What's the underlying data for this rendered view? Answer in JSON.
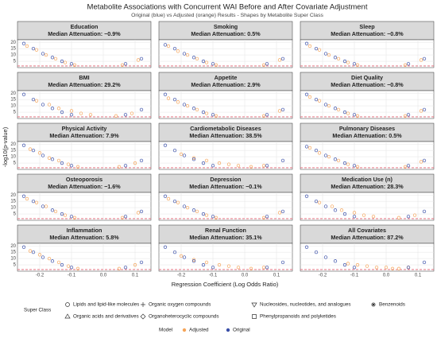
{
  "chart_data": {
    "type": "scatter",
    "title": "Metabolite Associations with Concurrent WAI Before and After Covariate Adjustment",
    "subtitle": "Original (blue) vs Adjusted (orange) Results - Shapes by Metabolite Super Class",
    "x_label": "Regression Coefficient (Log Odds Ratio)",
    "y_label": "-log10(p-value)",
    "xlim": [
      -0.27,
      0.15
    ],
    "ylim": [
      0,
      22
    ],
    "xticks": [
      -0.2,
      -0.1,
      {
        "value": 0,
        "label": "0.0"
      },
      0.1
    ],
    "yticks": [
      5,
      10,
      15,
      20
    ],
    "grid": true,
    "ref_line": 1.3,
    "ref_color": "#e06070",
    "series": [
      {
        "name": "Adjusted",
        "color": "#f5a55a"
      },
      {
        "name": "Original",
        "color": "#3a4fa8"
      }
    ],
    "legend_title": "Model",
    "class_legend": {
      "title": "Super Class",
      "entries": [
        "Lipids and lipid-like molecules",
        "Organic oxygen compounds",
        "Nucleosides, nucleotides, and analogues",
        "Benzenoids",
        "Organic acids and derivatives",
        "Organoheterocyclic compounds",
        "Phenylpropanoids and polyketides"
      ]
    },
    "facets": [
      {
        "title": "Education",
        "subtitle": "Median Attenuation: −0.9%",
        "points": [
          {
            "x": [
              -0.24,
              -0.21,
              -0.18,
              -0.15,
              -0.12,
              -0.09,
              0.06,
              0.11
            ],
            "y": [
              17,
              14,
              10,
              7,
              4,
              2,
              2,
              6
            ]
          },
          {
            "x": [
              -0.25,
              -0.22,
              -0.19,
              -0.16,
              -0.13,
              -0.1,
              0.07,
              0.12
            ],
            "y": [
              19,
              15,
              11,
              8,
              5,
              3,
              3,
              7
            ]
          }
        ]
      },
      {
        "title": "Smoking",
        "subtitle": "Median Attenuation: 0.5%",
        "points": [
          {
            "x": [
              -0.24,
              -0.21,
              -0.18,
              -0.15,
              -0.12,
              -0.09,
              0.06,
              0.11
            ],
            "y": [
              17,
              13,
              10,
              7,
              4,
              2,
              2,
              6
            ]
          },
          {
            "x": [
              -0.25,
              -0.22,
              -0.19,
              -0.16,
              -0.13,
              -0.1,
              0.07,
              0.12
            ],
            "y": [
              18,
              15,
              11,
              8,
              5,
              3,
              3,
              7
            ]
          }
        ]
      },
      {
        "title": "Sleep",
        "subtitle": "Median Attenuation: −0.8%",
        "points": [
          {
            "x": [
              -0.24,
              -0.21,
              -0.18,
              -0.15,
              -0.12,
              -0.09,
              0.06,
              0.11
            ],
            "y": [
              17,
              14,
              10,
              7,
              4,
              2,
              2,
              6
            ]
          },
          {
            "x": [
              -0.25,
              -0.22,
              -0.19,
              -0.16,
              -0.13,
              -0.1,
              0.07,
              0.12
            ],
            "y": [
              19,
              15,
              11,
              8,
              5,
              3,
              3,
              7
            ]
          }
        ]
      },
      {
        "title": "BMI",
        "subtitle": "Median Attenuation: 29.2%",
        "points": [
          {
            "x": [
              -0.21,
              -0.17,
              -0.14,
              -0.1,
              -0.07,
              -0.04,
              0.04,
              0.09
            ],
            "y": [
              14,
              11,
              8,
              6,
              4,
              3,
              2,
              4
            ]
          },
          {
            "x": [
              -0.25,
              -0.22,
              -0.19,
              -0.16,
              -0.13,
              -0.1,
              0.07,
              0.12
            ],
            "y": [
              19,
              15,
              11,
              8,
              5,
              3,
              3,
              7
            ]
          }
        ]
      },
      {
        "title": "Appetite",
        "subtitle": "Median Attenuation: 2.9%",
        "points": [
          {
            "x": [
              -0.24,
              -0.21,
              -0.18,
              -0.15,
              -0.12,
              -0.09,
              0.06,
              0.11
            ],
            "y": [
              16,
              13,
              10,
              7,
              4,
              2,
              2,
              6
            ]
          },
          {
            "x": [
              -0.25,
              -0.22,
              -0.19,
              -0.16,
              -0.13,
              -0.1,
              0.07,
              0.12
            ],
            "y": [
              19,
              15,
              11,
              8,
              5,
              3,
              3,
              7
            ]
          }
        ]
      },
      {
        "title": "Diet Quality",
        "subtitle": "Median Attenuation: −0.8%",
        "points": [
          {
            "x": [
              -0.24,
              -0.21,
              -0.18,
              -0.15,
              -0.12,
              -0.09,
              0.06,
              0.11
            ],
            "y": [
              17,
              14,
              10,
              7,
              4,
              2,
              2,
              6
            ]
          },
          {
            "x": [
              -0.25,
              -0.22,
              -0.19,
              -0.16,
              -0.13,
              -0.1,
              0.07,
              0.12
            ],
            "y": [
              19,
              15,
              11,
              8,
              5,
              3,
              3,
              7
            ]
          }
        ]
      },
      {
        "title": "Physical Activity",
        "subtitle": "Median Attenuation: 7.9%",
        "points": [
          {
            "x": [
              -0.23,
              -0.2,
              -0.17,
              -0.14,
              -0.11,
              -0.08,
              0.05,
              0.1
            ],
            "y": [
              16,
              13,
              9,
              7,
              4,
              2,
              2,
              5
            ]
          },
          {
            "x": [
              -0.25,
              -0.22,
              -0.19,
              -0.16,
              -0.13,
              -0.1,
              0.07,
              0.12
            ],
            "y": [
              19,
              15,
              11,
              8,
              5,
              3,
              3,
              7
            ]
          }
        ]
      },
      {
        "title": "Cardiometabolic Diseases",
        "subtitle": "Median Attenuation: 38.5%",
        "points": [
          {
            "x": [
              -0.2,
              -0.16,
              -0.12,
              -0.08,
              -0.05,
              -0.02,
              0.02,
              0.06
            ],
            "y": [
              12,
              9,
              7,
              5,
              4,
              3,
              2,
              3
            ]
          },
          {
            "x": [
              -0.25,
              -0.22,
              -0.19,
              -0.16,
              -0.13,
              -0.1,
              0.07,
              0.12
            ],
            "y": [
              19,
              15,
              11,
              8,
              5,
              3,
              3,
              7
            ]
          }
        ]
      },
      {
        "title": "Pulmonary Diseases",
        "subtitle": "Median Attenuation: 0.5%",
        "points": [
          {
            "x": [
              -0.24,
              -0.21,
              -0.18,
              -0.15,
              -0.12,
              -0.09,
              0.06,
              0.11
            ],
            "y": [
              17,
              13,
              10,
              7,
              4,
              2,
              2,
              6
            ]
          },
          {
            "x": [
              -0.25,
              -0.22,
              -0.19,
              -0.16,
              -0.13,
              -0.1,
              0.07,
              0.12
            ],
            "y": [
              18,
              15,
              11,
              8,
              5,
              3,
              3,
              7
            ]
          }
        ]
      },
      {
        "title": "Osteoporosis",
        "subtitle": "Median Attenuation: −1.6%",
        "points": [
          {
            "x": [
              -0.24,
              -0.21,
              -0.18,
              -0.15,
              -0.12,
              -0.09,
              0.06,
              0.11
            ],
            "y": [
              17,
              14,
              11,
              7,
              4,
              2,
              2,
              6
            ]
          },
          {
            "x": [
              -0.25,
              -0.22,
              -0.19,
              -0.16,
              -0.13,
              -0.1,
              0.07,
              0.12
            ],
            "y": [
              19,
              15,
              11,
              8,
              5,
              3,
              3,
              7
            ]
          }
        ]
      },
      {
        "title": "Depression",
        "subtitle": "Median Attenuation: −0.1%",
        "points": [
          {
            "x": [
              -0.24,
              -0.21,
              -0.18,
              -0.15,
              -0.12,
              -0.09,
              0.06,
              0.11
            ],
            "y": [
              17,
              14,
              10,
              7,
              4,
              2,
              2,
              6
            ]
          },
          {
            "x": [
              -0.25,
              -0.22,
              -0.19,
              -0.16,
              -0.13,
              -0.1,
              0.07,
              0.12
            ],
            "y": [
              19,
              15,
              11,
              8,
              5,
              3,
              3,
              7
            ]
          }
        ]
      },
      {
        "title": "Medication Use (n)",
        "subtitle": "Median Attenuation: 28.3%",
        "points": [
          {
            "x": [
              -0.21,
              -0.17,
              -0.14,
              -0.1,
              -0.07,
              -0.04,
              0.04,
              0.09
            ],
            "y": [
              14,
              11,
              8,
              6,
              4,
              3,
              2,
              4
            ]
          },
          {
            "x": [
              -0.25,
              -0.22,
              -0.19,
              -0.16,
              -0.13,
              -0.1,
              0.07,
              0.12
            ],
            "y": [
              19,
              15,
              11,
              8,
              5,
              3,
              3,
              7
            ]
          }
        ]
      },
      {
        "title": "Inflammation",
        "subtitle": "Median Attenuation: 5.8%",
        "points": [
          {
            "x": [
              -0.23,
              -0.2,
              -0.17,
              -0.14,
              -0.11,
              -0.08,
              0.05,
              0.1
            ],
            "y": [
              16,
              13,
              10,
              7,
              4,
              2,
              2,
              5
            ]
          },
          {
            "x": [
              -0.25,
              -0.22,
              -0.19,
              -0.16,
              -0.13,
              -0.1,
              0.07,
              0.12
            ],
            "y": [
              19,
              15,
              11,
              8,
              5,
              3,
              3,
              7
            ]
          }
        ]
      },
      {
        "title": "Renal Function",
        "subtitle": "Median Attenuation: 35.1%",
        "points": [
          {
            "x": [
              -0.2,
              -0.16,
              -0.12,
              -0.08,
              -0.05,
              -0.02,
              0.02,
              0.06
            ],
            "y": [
              12,
              9,
              7,
              5,
              4,
              3,
              2,
              3
            ]
          },
          {
            "x": [
              -0.25,
              -0.22,
              -0.19,
              -0.16,
              -0.13,
              -0.1,
              0.07,
              0.12
            ],
            "y": [
              19,
              15,
              11,
              8,
              5,
              3,
              3,
              7
            ]
          }
        ]
      },
      {
        "title": "All Covariates",
        "subtitle": "Median Attenuation: 87.2%",
        "points": [
          {
            "x": [
              -0.12,
              -0.09,
              -0.06,
              -0.03,
              0,
              0.02,
              0.04,
              0.07
            ],
            "y": [
              6,
              5,
              4,
              3,
              3,
              2,
              2,
              3
            ]
          },
          {
            "x": [
              -0.25,
              -0.22,
              -0.19,
              -0.16,
              -0.13,
              -0.1,
              0.07,
              0.12
            ],
            "y": [
              19,
              15,
              11,
              8,
              5,
              3,
              3,
              7
            ]
          }
        ]
      }
    ]
  }
}
